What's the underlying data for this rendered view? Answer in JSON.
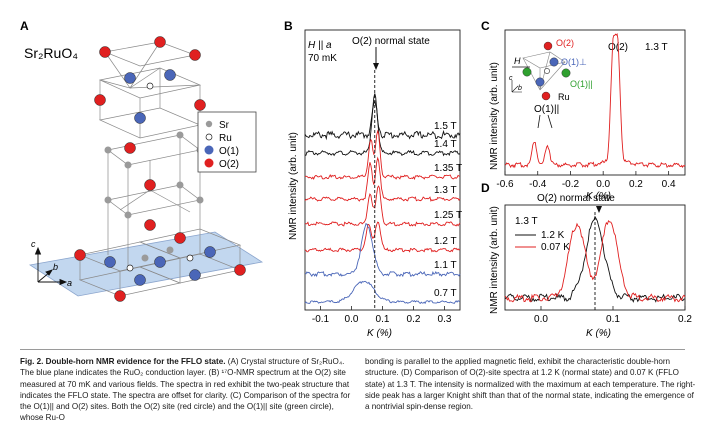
{
  "panel_a": {
    "label": "A",
    "formula": "Sr₂RuO₄",
    "legend": [
      {
        "name": "Sr",
        "color": "#9a9a9a"
      },
      {
        "name": "Ru",
        "color": "#ffffff"
      },
      {
        "name": "O(1)",
        "color": "#4a66b8"
      },
      {
        "name": "O(2)",
        "color": "#e02020"
      }
    ],
    "axes": {
      "c": "c",
      "b": "b",
      "a": "a"
    }
  },
  "panel_b": {
    "label": "B",
    "field_note": "H || a",
    "temp_note": "70 mK",
    "peak_label": "O(2) normal state",
    "ylabel": "NMR intensity (arb. unit)",
    "xlabel": "K (%)",
    "xticks": [
      "-0.1",
      "0.0",
      "0.1",
      "0.2",
      "0.3"
    ]
  },
  "panel_c": {
    "label": "C",
    "field_label": "1.3 T",
    "peak_o2": "O(2)",
    "peak_o1": "O(1)||",
    "ylabel": "NMR intensity (arb. unit)",
    "xlabel": "K (%)",
    "xticks": [
      "-0.6",
      "-0.4",
      "-0.2",
      "0.0",
      "0.2",
      "0.4"
    ],
    "inset": {
      "o2": "O(2)",
      "o1perp": "O(1)⊥",
      "o1par": "O(1)||",
      "ru": "Ru",
      "h": "H",
      "c": "c",
      "b": "b"
    }
  },
  "panel_d": {
    "label": "D",
    "title": "O(2) normal state",
    "field_label": "1.3 T",
    "ylabel": "NMR intensity (arb. unit)",
    "xlabel": "K (%)",
    "xticks": [
      "0.0",
      "0.1",
      "0.2"
    ]
  },
  "chart_data": [
    {
      "type": "line",
      "panel": "B",
      "xlabel": "K (%)",
      "ylabel": "NMR intensity (arb. unit)",
      "xlim": [
        -0.15,
        0.35
      ],
      "series": [
        {
          "name": "1.5 T",
          "color": "#111111",
          "peaks": [
            [
              0.075,
              0.8
            ]
          ],
          "width": 0.012,
          "baseline_noise": true
        },
        {
          "name": "1.4 T",
          "color": "#111111",
          "peaks": [
            [
              0.075,
              1.0
            ]
          ],
          "width": 0.012
        },
        {
          "name": "1.35 T",
          "color": "#e02020",
          "peaks": [
            [
              0.062,
              0.75
            ],
            [
              0.085,
              0.9
            ]
          ],
          "width": 0.01
        },
        {
          "name": "1.3 T",
          "color": "#e02020",
          "peaks": [
            [
              0.06,
              0.7
            ],
            [
              0.085,
              0.85
            ]
          ],
          "width": 0.01
        },
        {
          "name": "1.25 T",
          "color": "#e02020",
          "peaks": [
            [
              0.06,
              0.6
            ],
            [
              0.087,
              0.75
            ]
          ],
          "width": 0.011
        },
        {
          "name": "1.2 T",
          "color": "#e02020",
          "peaks": [
            [
              0.055,
              0.55
            ],
            [
              0.085,
              0.65
            ]
          ],
          "width": 0.012
        },
        {
          "name": "1.1 T",
          "color": "#4a66b8",
          "peaks": [
            [
              0.05,
              0.9
            ]
          ],
          "width": 0.025
        },
        {
          "name": "0.7 T",
          "color": "#4a66b8",
          "peaks": [
            [
              0.04,
              0.6
            ]
          ],
          "width": 0.045
        }
      ],
      "reference_line_x": 0.075
    },
    {
      "type": "line",
      "panel": "C",
      "xlabel": "K (%)",
      "xlim": [
        -0.6,
        0.5
      ],
      "series": [
        {
          "name": "1.3 T",
          "color": "#e02020",
          "peaks": [
            [
              -0.42,
              0.22
            ],
            [
              -0.34,
              0.18
            ],
            [
              0.06,
              1.0
            ],
            [
              0.09,
              1.0
            ]
          ],
          "width": 0.02
        }
      ]
    },
    {
      "type": "line",
      "panel": "D",
      "xlabel": "K (%)",
      "xlim": [
        -0.05,
        0.2
      ],
      "series": [
        {
          "name": "1.2 K",
          "color": "#111111",
          "peaks": [
            [
              0.075,
              1.0
            ]
          ],
          "width": 0.018
        },
        {
          "name": "0.07 K",
          "color": "#e02020",
          "peaks": [
            [
              0.05,
              0.95
            ],
            [
              0.095,
              1.0
            ]
          ],
          "width": 0.016
        }
      ],
      "reference_line_x": 0.075
    }
  ],
  "caption": {
    "title": "Fig. 2. Double-horn NMR evidence for the FFLO state.",
    "left_text": "(A) Crystal structure of Sr₂RuO₄. The blue plane indicates the RuO₂ conduction layer. (B) ¹⁷O-NMR spectrum at the O(2) site measured at 70 mK and various fields. The spectra in red exhibit the two-peak structure that indicates the FFLO state. The spectra are offset for clarity. (C) Comparison of the spectra for the O(1)|| and O(2) sites. Both the O(2) site (red circle) and the O(1)|| site (green circle), whose Ru-O",
    "right_text": "bonding is parallel to the applied magnetic field, exhibit the characteristic double-horn structure. (D) Comparison of O(2)-site spectra at 1.2 K (normal state) and 0.07 K (FFLO state) at 1.3 T. The intensity is normalized with the maximum at each temperature. The right-side peak has a larger Knight shift than that of the normal state, indicating the emergence of a nontrivial spin-dense region."
  }
}
